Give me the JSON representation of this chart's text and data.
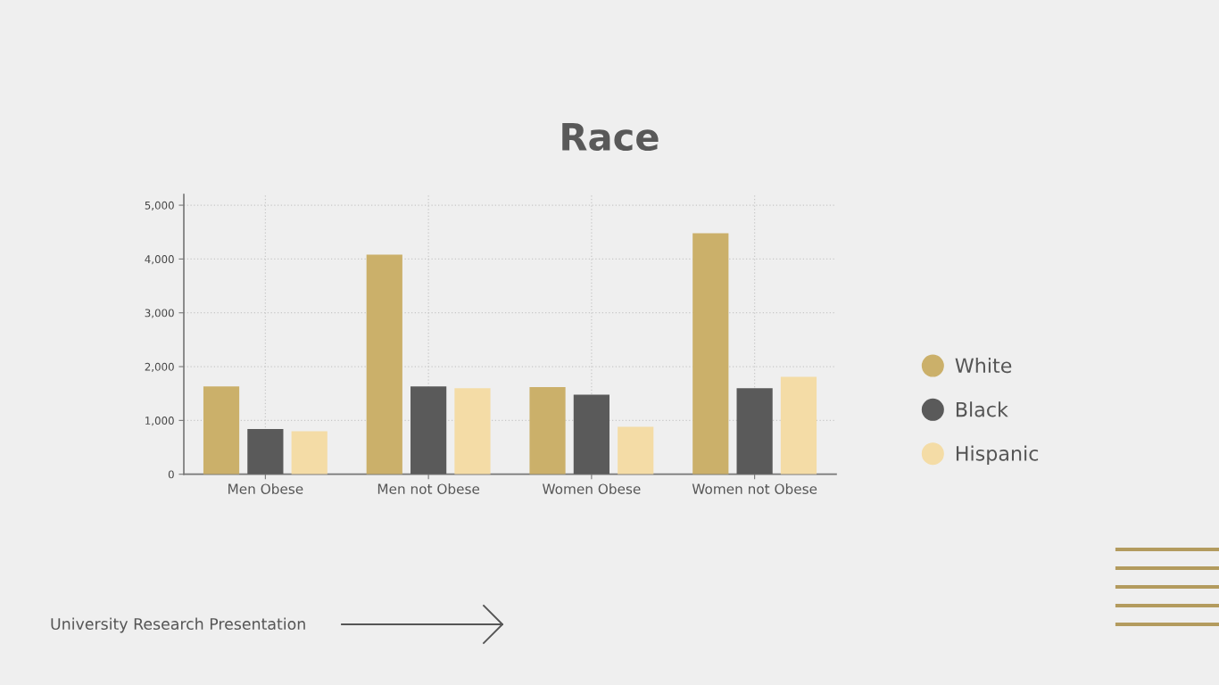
{
  "chart_data": {
    "type": "bar",
    "title": "Race",
    "categories": [
      "Men Obese",
      "Men not Obese",
      "Women Obese",
      "Women not Obese"
    ],
    "series": [
      {
        "name": "White",
        "color": "#cbb06a",
        "values": [
          1630,
          4080,
          1620,
          4480
        ]
      },
      {
        "name": "Black",
        "color": "#5a5a5a",
        "values": [
          840,
          1630,
          1480,
          1600
        ]
      },
      {
        "name": "Hispanic",
        "color": "#f4dca6",
        "values": [
          800,
          1600,
          880,
          1810
        ]
      }
    ],
    "ylim": [
      0,
      5200
    ],
    "yticks": [
      0,
      {
        "value": 1000,
        "label": "1,000"
      },
      {
        "value": 2000,
        "label": "2,000"
      },
      {
        "value": 3000,
        "label": "3,000"
      },
      {
        "value": 4000,
        "label": "4,000"
      },
      {
        "value": 5000,
        "label": "5,000"
      }
    ],
    "grid": true,
    "legend": "right",
    "marker": "circle",
    "annotations": [
      "University Research Presentation"
    ]
  }
}
